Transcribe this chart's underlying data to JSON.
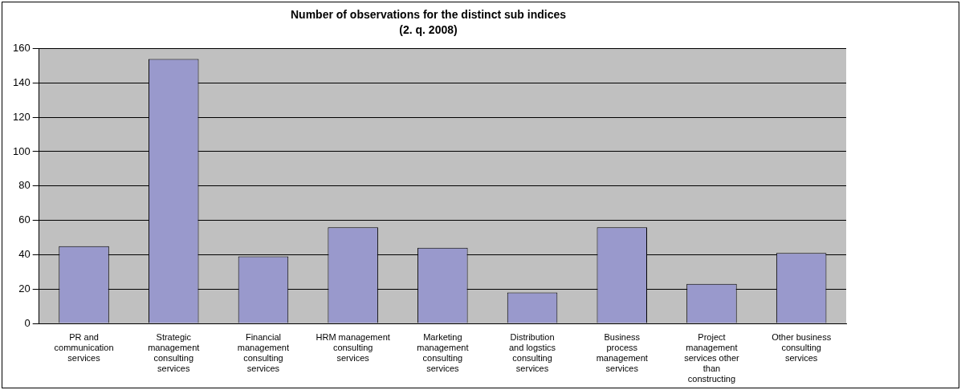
{
  "chart_data": {
    "type": "bar",
    "title": "Number of observations for the distinct sub indices",
    "subtitle": "(2. q. 2008)",
    "categories": [
      "PR and communication services",
      "Strategic management consulting services",
      "Financial management consulting services",
      "HRM management consulting services",
      "Marketing management consulting services",
      "Distribution and logstics consulting services",
      "Business process management services",
      "Project management services other than constructing",
      "Other business consulting services"
    ],
    "values": [
      45,
      154,
      39,
      56,
      44,
      18,
      56,
      23,
      41
    ],
    "color": "#9999cc",
    "ylim": [
      0,
      160
    ],
    "yticks": [
      0,
      20,
      40,
      60,
      80,
      100,
      120,
      140,
      160
    ],
    "grid": "y",
    "legend": false
  }
}
